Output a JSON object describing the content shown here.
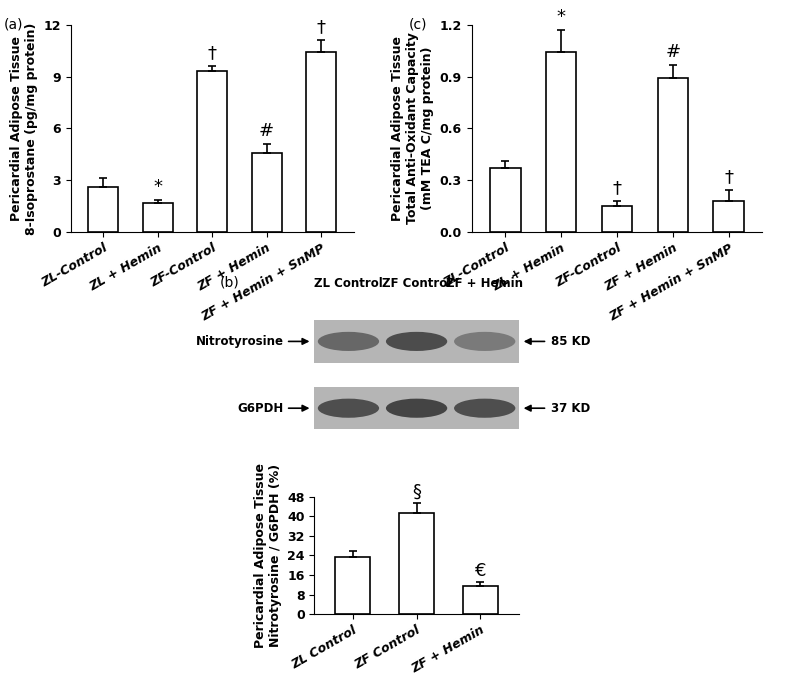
{
  "chart_data": [
    {
      "type": "bar",
      "panel": "(a)",
      "y_label": "Pericardial Adipose Tissue\n8-Isoprostane (pg/mg protein)",
      "categories": [
        "ZL-Control",
        "ZL + Hemin",
        "ZF-Control",
        "ZF + Hemin",
        "ZF + Hemin + SnMP"
      ],
      "values": [
        2.6,
        1.65,
        9.3,
        4.55,
        10.4
      ],
      "errors": [
        0.5,
        0.2,
        0.3,
        0.55,
        0.7
      ],
      "significance": [
        null,
        "*",
        "†",
        "#",
        "†"
      ],
      "color": "#ffffff",
      "ylim": [
        0,
        12
      ],
      "yticks": [
        0,
        3,
        6,
        9,
        12
      ]
    },
    {
      "type": "bar",
      "panel": "(b)",
      "y_label": "Pericardial Adipose Tissue\nNitrotyrosine / G6PDH (%)",
      "categories": [
        "ZL Control",
        "ZF Control",
        "ZF + Hemin"
      ],
      "values": [
        23.5,
        41.5,
        11.5
      ],
      "errors": [
        2.5,
        4.0,
        1.5
      ],
      "significance": [
        null,
        "§",
        "€"
      ],
      "color": "#ffffff",
      "ylim": [
        0,
        48
      ],
      "yticks": [
        0,
        8,
        16,
        24,
        32,
        40,
        48
      ]
    },
    {
      "type": "bar",
      "panel": "(c)",
      "y_label": "Pericardial Adipose Tissue\nTotal Anti-Oxidant Capacity\n(mM TEA C/mg protein)",
      "categories": [
        "ZL-Control",
        "ZL + Hemin",
        "ZF-Control",
        "ZF + Hemin",
        "ZF + Hemin + SnMP"
      ],
      "values": [
        0.37,
        1.04,
        0.15,
        0.89,
        0.18
      ],
      "errors": [
        0.04,
        0.13,
        0.03,
        0.075,
        0.06
      ],
      "significance": [
        null,
        "*",
        "†",
        "#",
        "†"
      ],
      "color": "#ffffff",
      "ylim": [
        0.0,
        1.2
      ],
      "yticks": [
        0.0,
        0.3,
        0.6,
        0.9,
        1.2
      ]
    }
  ],
  "blot": {
    "lanes": [
      "ZL Control",
      "ZF Control",
      "ZF + Hemin"
    ],
    "bands": [
      {
        "name": "Nitrotyrosine",
        "size": "85 KD"
      },
      {
        "name": "G6PDH",
        "size": "37 KD"
      }
    ]
  }
}
